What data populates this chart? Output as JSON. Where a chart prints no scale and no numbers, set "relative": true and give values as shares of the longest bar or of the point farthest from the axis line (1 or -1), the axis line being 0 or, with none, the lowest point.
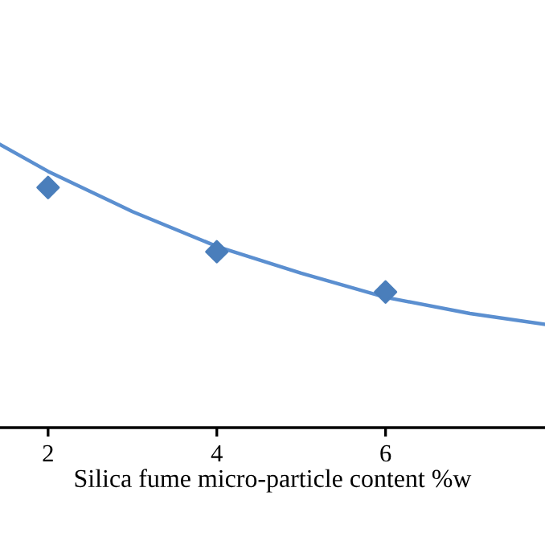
{
  "chart_data": {
    "type": "scatter",
    "xlabel": "Silica fume micro-particle content %w",
    "relative": true,
    "xlim": [
      1.43,
      7.89
    ],
    "xticks": [
      2,
      4,
      6
    ],
    "grid": false,
    "legend": false,
    "tick_labels": "x",
    "series": [
      {
        "color": "#4a7ebb",
        "marker": "diamond",
        "x": [
          2,
          4,
          6
        ],
        "values": [
          0.848,
          0.621,
          0.479
        ]
      },
      {
        "type": "line",
        "color": "#5b8fd0",
        "marker": "none",
        "line_style": "solid",
        "x": [
          1.43,
          2,
          3,
          4,
          5,
          6,
          7,
          7.89
        ],
        "values": [
          1.0,
          0.905,
          0.763,
          0.64,
          0.545,
          0.46,
          0.403,
          0.365
        ]
      }
    ]
  }
}
